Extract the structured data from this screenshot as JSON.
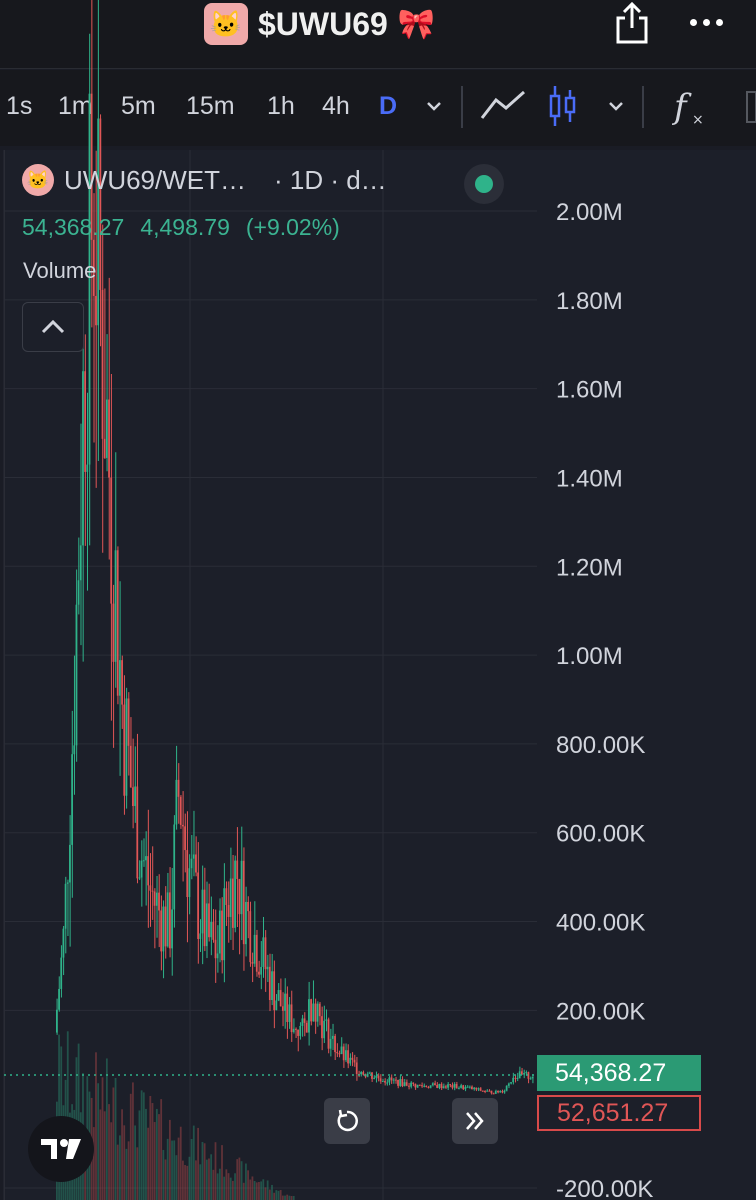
{
  "header": {
    "token_title": "$UWU69",
    "avatar_icon": "cat-avatar-icon",
    "decoration_icon": "ribbon-bow-icon"
  },
  "toolbar": {
    "timeframes": [
      "1s",
      "1m",
      "5m",
      "15m",
      "1h",
      "4h",
      "D"
    ],
    "active_timeframe": "D",
    "accent_color": "#4a6cf7"
  },
  "legend": {
    "pair": "UWU69/WET…",
    "interval": "· 1D · d…",
    "last_price": "54,368.27",
    "change": "4,498.79",
    "change_pct": "(+9.02%)",
    "volume_label": "Volume"
  },
  "price_tags": {
    "current": "54,368.27",
    "other": "52,651.27"
  },
  "chart_data": {
    "type": "candlestick",
    "up_color": "#2fb38a",
    "down_color": "#e05656",
    "y_ticks": [
      "2.00M",
      "1.80M",
      "1.60M",
      "1.40M",
      "1.20M",
      "1.00M",
      "800.00K",
      "600.00K",
      "400.00K",
      "200.00K",
      "-200.00K"
    ],
    "y_tick_values": [
      2000000,
      1800000,
      1600000,
      1400000,
      1200000,
      1000000,
      800000,
      600000,
      400000,
      200000,
      -200000
    ],
    "ylim": [
      -200000,
      2000000
    ],
    "current_price": 54368.27,
    "close_series": [
      150000,
      380000,
      900000,
      1600000,
      2050000,
      1700000,
      1300000,
      900000,
      700000,
      560000,
      470000,
      420000,
      380000,
      700000,
      520000,
      430000,
      360000,
      330000,
      450000,
      520000,
      420000,
      360000,
      300000,
      240000,
      200000,
      170000,
      150000,
      240000,
      170000,
      130000,
      100000,
      80000,
      65000,
      55000,
      48000,
      42000,
      38000,
      34000,
      30000,
      30000,
      30000,
      30000,
      28000,
      26000,
      22000,
      18000,
      15000,
      20000,
      55000,
      50000,
      54368
    ]
  }
}
